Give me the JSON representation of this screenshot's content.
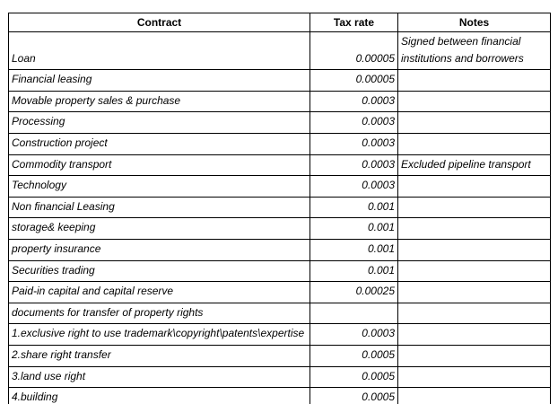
{
  "colors": {
    "background": "#ffffff",
    "border": "#000000",
    "text": "#000000"
  },
  "table": {
    "columns": [
      {
        "id": "contract",
        "label": "Contract"
      },
      {
        "id": "tax_rate",
        "label": "Tax rate"
      },
      {
        "id": "notes",
        "label": "Notes"
      }
    ],
    "rows": [
      {
        "contract": "Loan",
        "tax_rate": "0.00005",
        "notes": "Signed between financial institutions and borrowers"
      },
      {
        "contract": "Financial leasing",
        "tax_rate": "0.00005",
        "notes": ""
      },
      {
        "contract": "Movable property sales & purchase",
        "tax_rate": "0.0003",
        "notes": ""
      },
      {
        "contract": "Processing",
        "tax_rate": "0.0003",
        "notes": ""
      },
      {
        "contract": "Construction project",
        "tax_rate": "0.0003",
        "notes": ""
      },
      {
        "contract": "Commodity transport",
        "tax_rate": "0.0003",
        "notes": "Excluded pipeline transport"
      },
      {
        "contract": "Technology",
        "tax_rate": "0.0003",
        "notes": ""
      },
      {
        "contract": "Non financial Leasing",
        "tax_rate": "0.001",
        "notes": ""
      },
      {
        "contract": "storage& keeping",
        "tax_rate": "0.001",
        "notes": ""
      },
      {
        "contract": "property insurance",
        "tax_rate": "0.001",
        "notes": ""
      },
      {
        "contract": "Securities trading",
        "tax_rate": "0.001",
        "notes": ""
      },
      {
        "contract": "Paid-in capital and capital reserve",
        "tax_rate": "0.00025",
        "notes": ""
      },
      {
        "contract": "documents for transfer of property rights",
        "tax_rate": "",
        "notes": ""
      },
      {
        "contract": "1.exclusive right to use trademark\\copyright\\patents\\expertise",
        "tax_rate": "0.0003",
        "notes": ""
      },
      {
        "contract": "2.share right transfer",
        "tax_rate": "0.0005",
        "notes": ""
      },
      {
        "contract": "3.land use right",
        "tax_rate": "0.0005",
        "notes": ""
      },
      {
        "contract": "4.building",
        "tax_rate": "0.0005",
        "notes": ""
      }
    ]
  }
}
